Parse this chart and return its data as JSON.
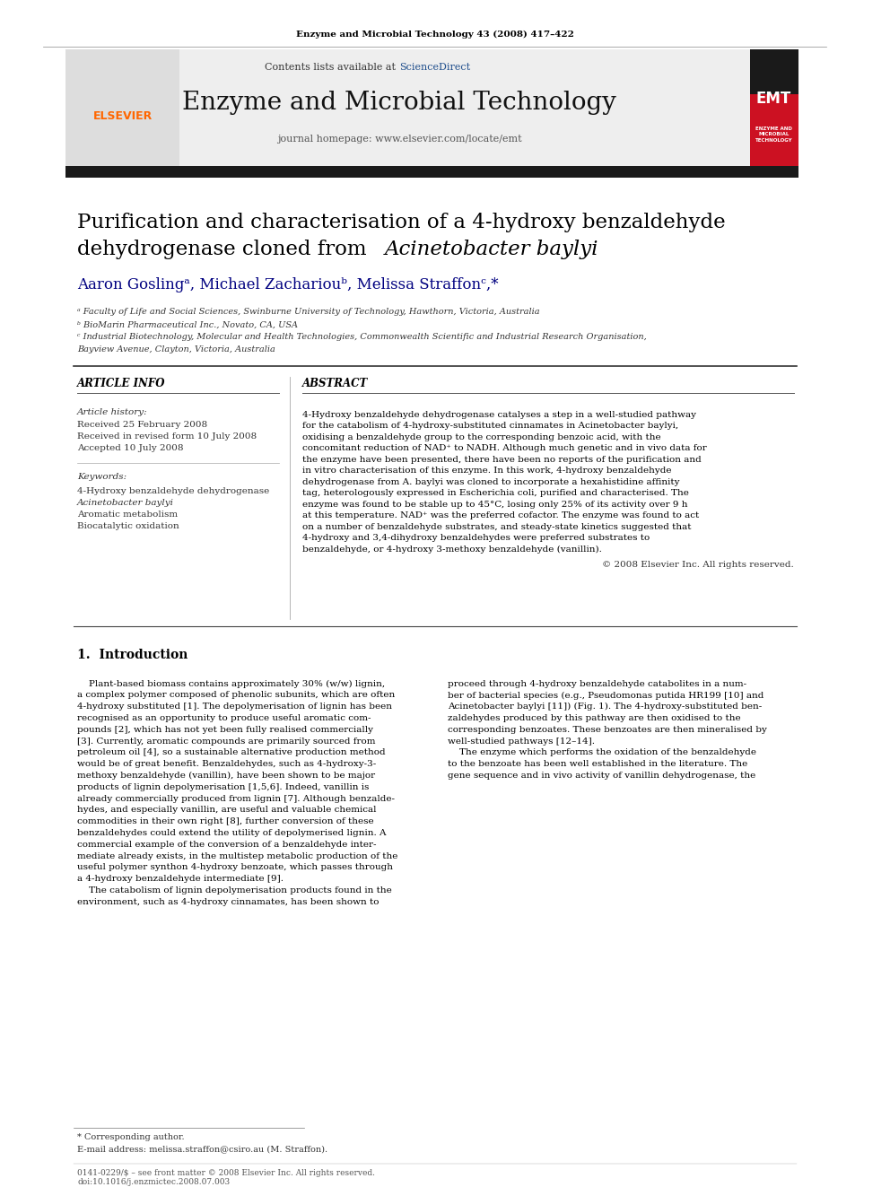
{
  "page_header": "Enzyme and Microbial Technology 43 (2008) 417–422",
  "journal_name": "Enzyme and Microbial Technology",
  "contents_line": "Contents lists available at ScienceDirect",
  "journal_homepage": "journal homepage: www.elsevier.com/locate/emt",
  "sciencedirect_color": "#1F4E8C",
  "elsevier_color": "#FF6600",
  "title_line1": "Purification and characterisation of a 4-hydroxy benzaldehyde",
  "title_line2": "dehydrogenase cloned from ",
  "title_italic": "Acinetobacter baylyi",
  "authors": "Aaron Goslingᵃ, Michael Zachariouᵇ, Melissa Straffonᶜ,*",
  "author_color": "#000080",
  "affil_a": "ᵃ Faculty of Life and Social Sciences, Swinburne University of Technology, Hawthorn, Victoria, Australia",
  "affil_b": "ᵇ BioMarin Pharmaceutical Inc., Novato, CA, USA",
  "affil_c": "ᶜ Industrial Biotechnology, Molecular and Health Technologies, Commonwealth Scientific and Industrial Research Organisation,",
  "affil_c2": "Bayview Avenue, Clayton, Victoria, Australia",
  "article_info_header": "ARTICLE INFO",
  "abstract_header": "ABSTRACT",
  "article_history_label": "Article history:",
  "received": "Received 25 February 2008",
  "revised": "Received in revised form 10 July 2008",
  "accepted": "Accepted 10 July 2008",
  "keywords_label": "Keywords:",
  "kw1": "4-Hydroxy benzaldehyde dehydrogenase",
  "kw2": "Acinetobacter baylyi",
  "kw3": "Aromatic metabolism",
  "kw4": "Biocatalytic oxidation",
  "abstract_text": "4-Hydroxy benzaldehyde dehydrogenase catalyses a step in a well-studied pathway for the catabolism of 4-hydroxy-substituted cinnamates in Acinetobacter baylyi, oxidising a benzaldehyde group to the corresponding benzoic acid, with the concomitant reduction of NAD⁺ to NADH. Although much genetic and in vivo data for the enzyme have been presented, there have been no reports of the purification and in vitro characterisation of this enzyme. In this work, 4-hydroxy benzaldehyde dehydrogenase from A. baylyi was cloned to incorporate a hexahistidine affinity tag, heterologously expressed in Escherichia coli, purified and characterised. The enzyme was found to be stable up to 45°C, losing only 25% of its activity over 9 h at this temperature. NAD⁺ was the preferred cofactor. The enzyme was found to act on a number of benzaldehyde substrates, and steady-state kinetics suggested that 4-hydroxy and 3,4-dihydroxy benzaldehydes were preferred substrates to benzaldehyde, or 4-hydroxy 3-methoxy benzaldehyde (vanillin).",
  "copyright": "© 2008 Elsevier Inc. All rights reserved.",
  "intro_header": "1.  Introduction",
  "intro_col1_p1": "    Plant-based biomass contains approximately 30% (w/w) lignin, a complex polymer composed of phenolic subunits, which are often 4-hydroxy substituted [1]. The depolymerisation of lignin has been recognised as an opportunity to produce useful aromatic compounds [2], which has not yet been fully realised commercially [3]. Currently, aromatic compounds are primarily sourced from petroleum oil [4], so a sustainable alternative production method",
  "intro_col2_p1": "proceed through 4-hydroxy benzaldehyde catabolites in a number of bacterial species (e.g., Pseudomonas putida HR199 [10] and Acinetobacter baylyi [11]) (Fig. 1). The 4-hydroxy-substituted benzaldehydes produced by this pathway are then oxidised to the corresponding benzoates. These benzoates are then mineralised by well-studied pathways [12–14].",
  "intro_col2_p2": "    The enzyme which performs the oxidation of the benzaldehyde to the benzoate has been well established in the literature. The gene sequence and in vivo activity of vanillin dehydrogenase, the",
  "intro_col1_p2": "would be of great benefit. Benzaldehydes, such as 4-hydroxy-3-methoxy benzaldehyde (vanillin), have been shown to be major products of lignin depolymerisation [1,5,6]. Indeed, vanillin is already commercially produced from lignin [7]. Although benzaldehydes, and especially vanillin, are useful and valuable chemical commodities in their own right [8], further conversion of these benzaldehydes could extend the utility of depolymerised lignin. A commercial example of the conversion of a benzaldehyde intermediate already exists, in the multistep metabolic production of the useful polymer synthon 4-hydroxy benzoate, which passes through a 4-hydroxy benzaldehyde intermediate [9].",
  "intro_col1_p3": "    The catabolism of lignin depolymerisation products found in the environment, such as 4-hydroxy cinnamates, has been shown to",
  "footnote_star": "* Corresponding author.",
  "footnote_email": "E-mail address: melissa.straffon@csiro.au (M. Straffon).",
  "footer_text": "0141-0229/$ – see front matter © 2008 Elsevier Inc. All rights reserved.",
  "footer_doi": "doi:10.1016/j.enzmictec.2008.07.003",
  "background_color": "#FFFFFF",
  "header_bg": "#F0F0F0",
  "dark_bar_color": "#1A1A1A",
  "link_color": "#1F4E8C"
}
